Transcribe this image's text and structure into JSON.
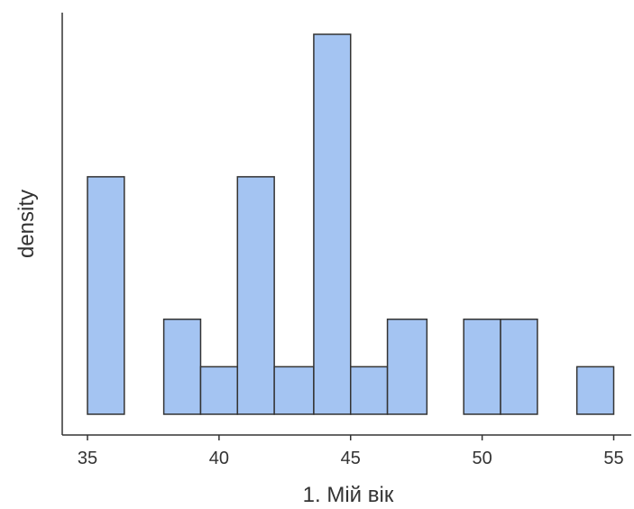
{
  "chart_data": {
    "type": "bar",
    "subtype": "histogram",
    "xlabel": "1. Мій вік",
    "ylabel": "density",
    "xlim": [
      34.5,
      55.5
    ],
    "ylim": [
      0,
      8
    ],
    "x_ticks": [
      35,
      40,
      45,
      50,
      55
    ],
    "y_ticks_shown": false,
    "grid": false,
    "legend": "none",
    "bar_fill": "#a4c4f2",
    "bar_stroke": "#333333",
    "bins": [
      {
        "x0": 35.0,
        "x1": 36.4,
        "value": 5
      },
      {
        "x0": 36.4,
        "x1": 37.9,
        "value": 0
      },
      {
        "x0": 37.9,
        "x1": 39.3,
        "value": 2
      },
      {
        "x0": 39.3,
        "x1": 40.7,
        "value": 1
      },
      {
        "x0": 40.7,
        "x1": 42.1,
        "value": 5
      },
      {
        "x0": 42.1,
        "x1": 43.6,
        "value": 1
      },
      {
        "x0": 43.6,
        "x1": 45.0,
        "value": 8
      },
      {
        "x0": 45.0,
        "x1": 46.4,
        "value": 1
      },
      {
        "x0": 46.4,
        "x1": 47.9,
        "value": 2
      },
      {
        "x0": 47.9,
        "x1": 49.3,
        "value": 0
      },
      {
        "x0": 49.3,
        "x1": 50.7,
        "value": 2
      },
      {
        "x0": 50.7,
        "x1": 52.1,
        "value": 2
      },
      {
        "x0": 52.1,
        "x1": 53.6,
        "value": 0
      },
      {
        "x0": 53.6,
        "x1": 55.0,
        "value": 1
      }
    ]
  }
}
